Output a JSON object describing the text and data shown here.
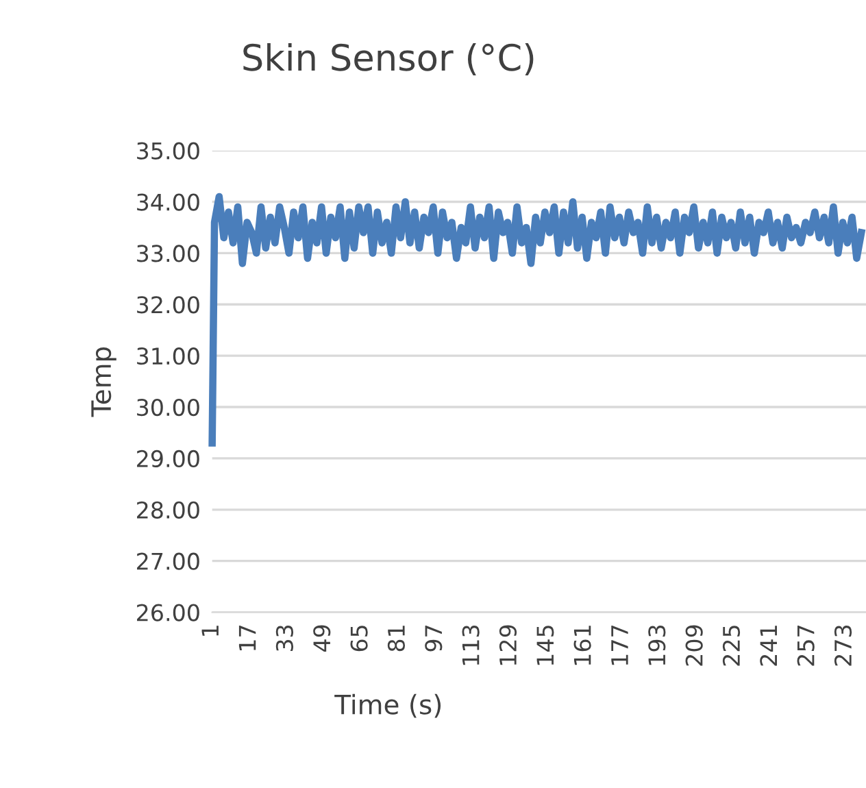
{
  "chart_data": {
    "type": "line",
    "title": "Skin Sensor (°C)",
    "xlabel": "Time (s)",
    "ylabel": "Temp",
    "x": [
      1,
      2,
      4,
      6,
      8,
      10,
      12,
      14,
      16,
      18,
      20,
      22,
      24,
      26,
      28,
      30,
      32,
      34,
      36,
      38,
      40,
      42,
      44,
      46,
      48,
      50,
      52,
      54,
      56,
      58,
      60,
      62,
      64,
      66,
      68,
      70,
      72,
      74,
      76,
      78,
      80,
      82,
      84,
      86,
      88,
      90,
      92,
      94,
      96,
      98,
      100,
      102,
      104,
      106,
      108,
      110,
      112,
      114,
      116,
      118,
      120,
      122,
      124,
      126,
      128,
      130,
      132,
      134,
      136,
      138,
      140,
      142,
      144,
      146,
      148,
      150,
      152,
      154,
      156,
      158,
      160,
      162,
      164,
      166,
      168,
      170,
      172,
      174,
      176,
      178,
      180,
      182,
      184,
      186,
      188,
      190,
      192,
      194,
      196,
      198,
      200,
      202,
      204,
      206,
      208,
      210,
      212,
      214,
      216,
      218,
      220,
      222,
      224,
      226,
      228,
      230,
      232,
      234,
      236,
      238,
      240,
      242,
      244,
      246,
      248,
      250,
      252,
      254,
      256,
      258,
      260,
      262,
      264,
      266,
      268,
      270,
      272,
      274,
      276,
      278,
      280
    ],
    "series": [
      {
        "color": "#4a7ebb",
        "values": [
          29.3,
          33.6,
          34.1,
          33.3,
          33.8,
          33.2,
          33.9,
          32.8,
          33.6,
          33.4,
          33.0,
          33.9,
          33.1,
          33.7,
          33.2,
          33.9,
          33.5,
          33.0,
          33.8,
          33.3,
          33.9,
          32.9,
          33.6,
          33.2,
          33.9,
          33.0,
          33.7,
          33.3,
          33.9,
          32.9,
          33.8,
          33.1,
          33.9,
          33.4,
          33.9,
          33.0,
          33.8,
          33.2,
          33.6,
          33.0,
          33.9,
          33.3,
          34.0,
          33.2,
          33.8,
          33.1,
          33.7,
          33.4,
          33.9,
          33.0,
          33.8,
          33.3,
          33.6,
          32.9,
          33.5,
          33.2,
          33.9,
          33.1,
          33.7,
          33.3,
          33.9,
          32.9,
          33.8,
          33.4,
          33.6,
          33.0,
          33.9,
          33.2,
          33.5,
          32.8,
          33.7,
          33.2,
          33.8,
          33.4,
          33.9,
          33.0,
          33.8,
          33.2,
          34.0,
          33.1,
          33.7,
          32.9,
          33.6,
          33.3,
          33.8,
          33.0,
          33.9,
          33.3,
          33.7,
          33.2,
          33.8,
          33.4,
          33.6,
          33.0,
          33.9,
          33.2,
          33.7,
          33.1,
          33.6,
          33.3,
          33.8,
          33.0,
          33.7,
          33.4,
          33.9,
          33.1,
          33.6,
          33.2,
          33.8,
          33.0,
          33.7,
          33.3,
          33.6,
          33.1,
          33.8,
          33.2,
          33.7,
          33.0,
          33.6,
          33.4,
          33.8,
          33.2,
          33.6,
          33.1,
          33.7,
          33.3,
          33.5,
          33.2,
          33.6,
          33.4,
          33.8,
          33.3,
          33.7,
          33.2,
          33.9,
          33.0,
          33.6,
          33.2,
          33.7,
          32.9,
          33.4
        ]
      }
    ],
    "xlim": [
      1,
      282
    ],
    "xticks": [
      1,
      17,
      33,
      49,
      65,
      81,
      97,
      113,
      129,
      145,
      161,
      177,
      193,
      209,
      225,
      241,
      257,
      273
    ],
    "ylim": [
      26,
      35
    ],
    "yticks": [
      {
        "value": 26,
        "label": "26.00"
      },
      {
        "value": 27,
        "label": "27.00"
      },
      {
        "value": 28,
        "label": "28.00"
      },
      {
        "value": 29,
        "label": "29.00"
      },
      {
        "value": 30,
        "label": "30.00"
      },
      {
        "value": 31,
        "label": "31.00"
      },
      {
        "value": 32,
        "label": "32.00"
      },
      {
        "value": 33,
        "label": "33.00"
      },
      {
        "value": 34,
        "label": "34.00"
      },
      {
        "value": 35,
        "label": "35.00"
      }
    ],
    "grid": "y",
    "marker": "none",
    "line_style": "solid",
    "legend": false
  }
}
